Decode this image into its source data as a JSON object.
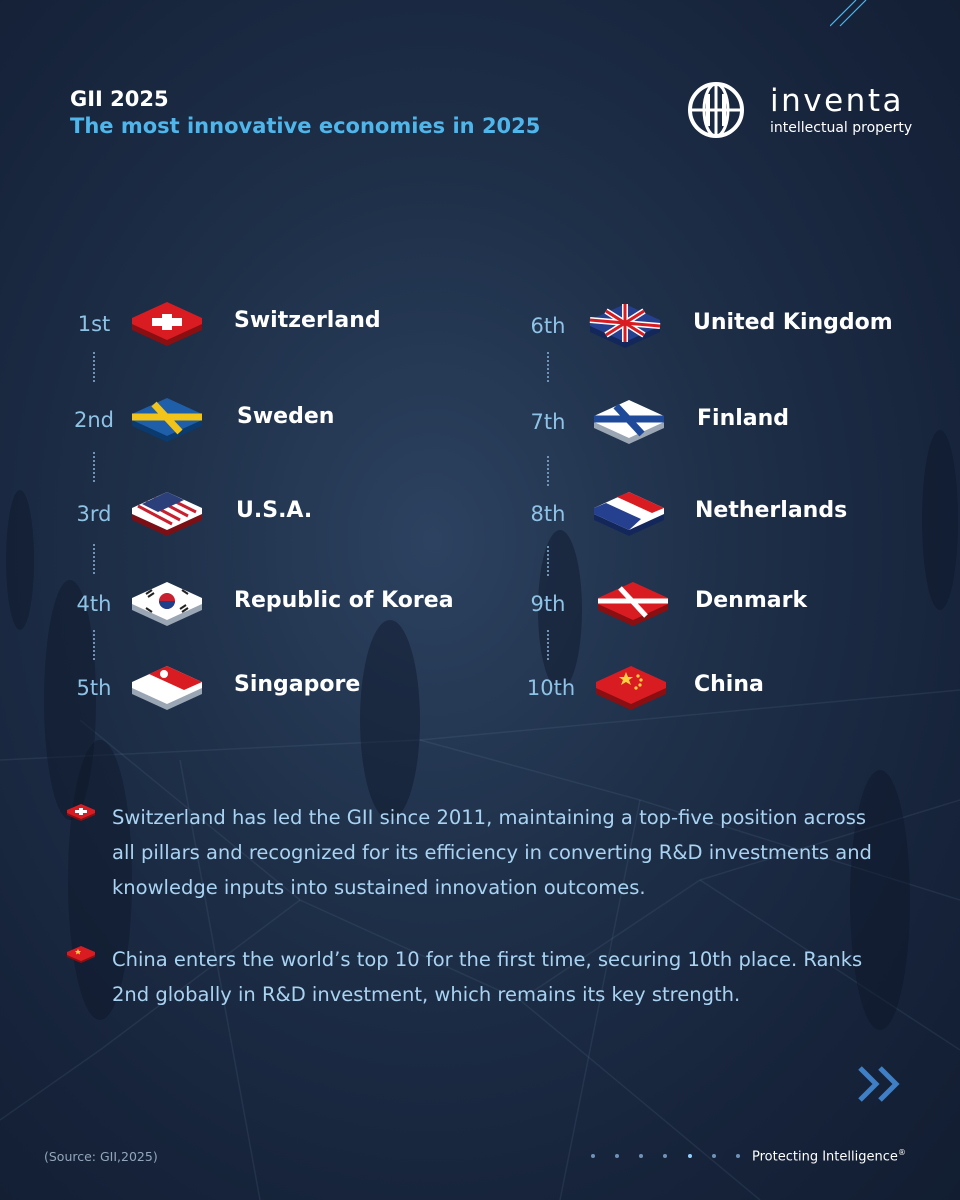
{
  "header": {
    "kicker": "GII 2025",
    "title": "The most innovative economies in 2025"
  },
  "logo": {
    "wordmark": "inventa",
    "subtitle": "intellectual property",
    "icon": "globe-logo-icon"
  },
  "rankings": [
    {
      "rank": "1st",
      "country": "Switzerland",
      "flag": "switzerland-flag-icon"
    },
    {
      "rank": "2nd",
      "country": "Sweden",
      "flag": "sweden-flag-icon"
    },
    {
      "rank": "3rd",
      "country": "U.S.A.",
      "flag": "usa-flag-icon"
    },
    {
      "rank": "4th",
      "country": "Republic of Korea",
      "flag": "korea-flag-icon"
    },
    {
      "rank": "5th",
      "country": "Singapore",
      "flag": "singapore-flag-icon"
    },
    {
      "rank": "6th",
      "country": "United Kingdom",
      "flag": "uk-flag-icon"
    },
    {
      "rank": "7th",
      "country": "Finland",
      "flag": "finland-flag-icon"
    },
    {
      "rank": "8th",
      "country": "Netherlands",
      "flag": "netherlands-flag-icon"
    },
    {
      "rank": "9th",
      "country": "Denmark",
      "flag": "denmark-flag-icon"
    },
    {
      "rank": "10th",
      "country": "China",
      "flag": "china-flag-icon"
    }
  ],
  "notes": [
    {
      "flag": "switzerland-flag-icon",
      "text": "Switzerland has led the GII since 2011, maintaining a top-five position across all pillars and recognized for its efficiency in converting R&D investments and knowledge inputs into sustained innovation outcomes."
    },
    {
      "flag": "china-flag-icon",
      "text": "China enters the world’s top 10 for the first time, securing 10th place. Ranks 2nd globally in R&D investment, which remains its key strength."
    }
  ],
  "footer": {
    "source": "(Source: GII,2025)",
    "tagline": "Protecting Intelligence",
    "tagline_mark": "®",
    "pager_total": 7,
    "pager_active": 5,
    "next_icon": "double-chevron-right-icon"
  },
  "colors": {
    "accent": "#4fb6ec",
    "background": "#1a2a42",
    "rank_text": "#8fc3e6",
    "note_text": "#a9d3f2"
  }
}
